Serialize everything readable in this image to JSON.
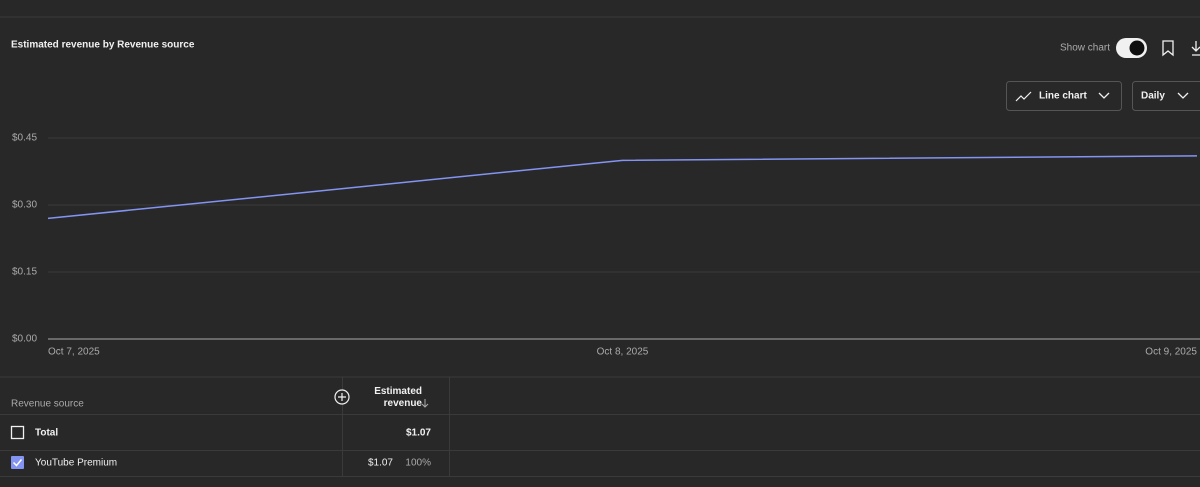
{
  "panel": {
    "title": "Estimated revenue by Revenue source",
    "show_chart": "Show chart",
    "chart_type": "Line chart",
    "interval": "Daily"
  },
  "chart_data": {
    "type": "line",
    "x": [
      "Oct 7, 2025",
      "Oct 8, 2025",
      "Oct 9, 2025"
    ],
    "values": [
      0.27,
      0.4,
      0.41
    ],
    "color": "#8494f2",
    "ylim": [
      0,
      0.45
    ],
    "yticks": [
      {
        "value": 0,
        "label": "$0.00"
      },
      {
        "value": 0.15,
        "label": "$0.15"
      },
      {
        "value": 0.3,
        "label": "$0.30"
      },
      {
        "value": 0.45,
        "label": "$0.45"
      }
    ],
    "grid": true
  },
  "table": {
    "headers": [
      "Revenue source",
      "Estimated revenue"
    ],
    "rows": [
      [
        "Total",
        "$1.07"
      ],
      [
        "YouTube Premium",
        "$1.07",
        "100%"
      ]
    ]
  }
}
